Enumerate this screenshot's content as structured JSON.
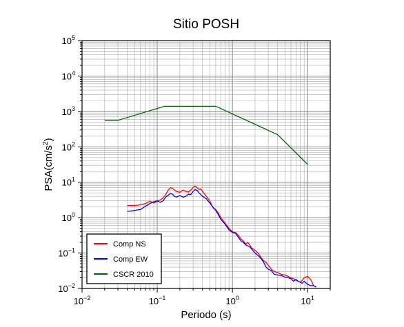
{
  "chart_data": {
    "type": "line",
    "title": "Sitio POSH",
    "xlabel": "Periodo (s)",
    "ylabel": {
      "prefix": "PSA(cm/s",
      "sup": "2",
      "suffix": ")"
    },
    "xscale": "log",
    "yscale": "log",
    "xlim": [
      0.01,
      20
    ],
    "ylim": [
      0.01,
      100000
    ],
    "grid": true,
    "legend_position": "bottom-left",
    "xticks": [
      {
        "value": 0.01,
        "base": "10",
        "exp": "−2"
      },
      {
        "value": 0.1,
        "base": "10",
        "exp": "−1"
      },
      {
        "value": 1,
        "base": "10",
        "exp": "0"
      },
      {
        "value": 10,
        "base": "10",
        "exp": "1"
      }
    ],
    "yticks": [
      {
        "value": 0.01,
        "base": "10",
        "exp": "−2"
      },
      {
        "value": 0.1,
        "base": "10",
        "exp": "−1"
      },
      {
        "value": 1,
        "base": "10",
        "exp": "0"
      },
      {
        "value": 10,
        "base": "10",
        "exp": "1"
      },
      {
        "value": 100,
        "base": "10",
        "exp": "2"
      },
      {
        "value": 1000,
        "base": "10",
        "exp": "3"
      },
      {
        "value": 10000,
        "base": "10",
        "exp": "4"
      },
      {
        "value": 100000,
        "base": "10",
        "exp": "5"
      }
    ],
    "series": [
      {
        "name": "Comp NS",
        "color": "#ff0000",
        "points": [
          [
            0.04,
            2.2
          ],
          [
            0.05,
            2.2
          ],
          [
            0.06,
            2.3
          ],
          [
            0.07,
            2.5
          ],
          [
            0.08,
            2.9
          ],
          [
            0.09,
            2.6
          ],
          [
            0.1,
            2.9
          ],
          [
            0.11,
            3.2
          ],
          [
            0.12,
            3.6
          ],
          [
            0.13,
            4.5
          ],
          [
            0.14,
            6.0
          ],
          [
            0.15,
            7.0
          ],
          [
            0.16,
            6.8
          ],
          [
            0.17,
            6.0
          ],
          [
            0.18,
            5.5
          ],
          [
            0.2,
            5.2
          ],
          [
            0.22,
            6.0
          ],
          [
            0.24,
            5.5
          ],
          [
            0.26,
            5.3
          ],
          [
            0.28,
            6.0
          ],
          [
            0.3,
            7.2
          ],
          [
            0.32,
            7.8
          ],
          [
            0.34,
            7.0
          ],
          [
            0.36,
            6.2
          ],
          [
            0.38,
            6.5
          ],
          [
            0.4,
            5.5
          ],
          [
            0.45,
            4.0
          ],
          [
            0.5,
            3.0
          ],
          [
            0.55,
            1.9
          ],
          [
            0.6,
            1.7
          ],
          [
            0.65,
            1.35
          ],
          [
            0.7,
            1.0
          ],
          [
            0.8,
            0.7
          ],
          [
            0.9,
            0.5
          ],
          [
            1.0,
            0.4
          ],
          [
            1.1,
            0.38
          ],
          [
            1.2,
            0.32
          ],
          [
            1.3,
            0.25
          ],
          [
            1.4,
            0.22
          ],
          [
            1.5,
            0.18
          ],
          [
            1.6,
            0.2
          ],
          [
            1.7,
            0.17
          ],
          [
            1.8,
            0.14
          ],
          [
            2.0,
            0.12
          ],
          [
            2.2,
            0.1
          ],
          [
            2.4,
            0.075
          ],
          [
            2.6,
            0.06
          ],
          [
            2.8,
            0.055
          ],
          [
            3.0,
            0.045
          ],
          [
            3.3,
            0.035
          ],
          [
            3.6,
            0.03
          ],
          [
            4.0,
            0.028
          ],
          [
            4.5,
            0.025
          ],
          [
            5.0,
            0.024
          ],
          [
            5.5,
            0.022
          ],
          [
            6.0,
            0.02
          ],
          [
            6.5,
            0.019
          ],
          [
            7.0,
            0.017
          ],
          [
            7.5,
            0.016
          ],
          [
            8.0,
            0.015
          ],
          [
            8.5,
            0.017
          ],
          [
            9.0,
            0.02
          ],
          [
            10.0,
            0.022
          ],
          [
            11.0,
            0.018
          ],
          [
            12.0,
            0.012
          ],
          [
            13.0,
            0.011
          ]
        ]
      },
      {
        "name": "Comp EW",
        "color": "#0000ff",
        "points": [
          [
            0.04,
            1.5
          ],
          [
            0.05,
            1.6
          ],
          [
            0.06,
            1.7
          ],
          [
            0.07,
            2.1
          ],
          [
            0.08,
            2.5
          ],
          [
            0.09,
            2.8
          ],
          [
            0.1,
            3.0
          ],
          [
            0.11,
            2.7
          ],
          [
            0.12,
            3.0
          ],
          [
            0.13,
            3.8
          ],
          [
            0.14,
            4.3
          ],
          [
            0.15,
            4.8
          ],
          [
            0.16,
            4.6
          ],
          [
            0.17,
            4.0
          ],
          [
            0.18,
            3.8
          ],
          [
            0.2,
            4.2
          ],
          [
            0.22,
            3.8
          ],
          [
            0.24,
            4.0
          ],
          [
            0.26,
            4.6
          ],
          [
            0.28,
            4.5
          ],
          [
            0.3,
            5.5
          ],
          [
            0.32,
            6.2
          ],
          [
            0.34,
            5.8
          ],
          [
            0.36,
            5.0
          ],
          [
            0.38,
            4.5
          ],
          [
            0.4,
            4.0
          ],
          [
            0.45,
            3.4
          ],
          [
            0.5,
            2.6
          ],
          [
            0.55,
            2.0
          ],
          [
            0.6,
            1.6
          ],
          [
            0.65,
            1.2
          ],
          [
            0.7,
            0.9
          ],
          [
            0.8,
            0.65
          ],
          [
            0.9,
            0.45
          ],
          [
            1.0,
            0.38
          ],
          [
            1.1,
            0.36
          ],
          [
            1.2,
            0.28
          ],
          [
            1.3,
            0.22
          ],
          [
            1.4,
            0.2
          ],
          [
            1.5,
            0.17
          ],
          [
            1.6,
            0.16
          ],
          [
            1.7,
            0.15
          ],
          [
            1.8,
            0.13
          ],
          [
            2.0,
            0.1
          ],
          [
            2.2,
            0.085
          ],
          [
            2.4,
            0.07
          ],
          [
            2.6,
            0.055
          ],
          [
            2.8,
            0.04
          ],
          [
            3.0,
            0.035
          ],
          [
            3.3,
            0.032
          ],
          [
            3.6,
            0.025
          ],
          [
            4.0,
            0.024
          ],
          [
            4.5,
            0.023
          ],
          [
            5.0,
            0.021
          ],
          [
            5.5,
            0.02
          ],
          [
            6.0,
            0.019
          ],
          [
            6.5,
            0.016
          ],
          [
            7.0,
            0.018
          ],
          [
            7.5,
            0.016
          ],
          [
            8.0,
            0.015
          ],
          [
            8.5,
            0.014
          ],
          [
            9.0,
            0.016
          ],
          [
            10.0,
            0.013
          ],
          [
            11.0,
            0.012
          ],
          [
            12.0,
            0.012
          ],
          [
            13.0,
            0.011
          ]
        ]
      },
      {
        "name": "CSCR 2010",
        "color": "#006400",
        "points": [
          [
            0.02,
            560
          ],
          [
            0.03,
            560
          ],
          [
            0.125,
            1400
          ],
          [
            0.6,
            1400
          ],
          [
            4.0,
            220
          ],
          [
            10.0,
            32
          ]
        ]
      }
    ]
  }
}
